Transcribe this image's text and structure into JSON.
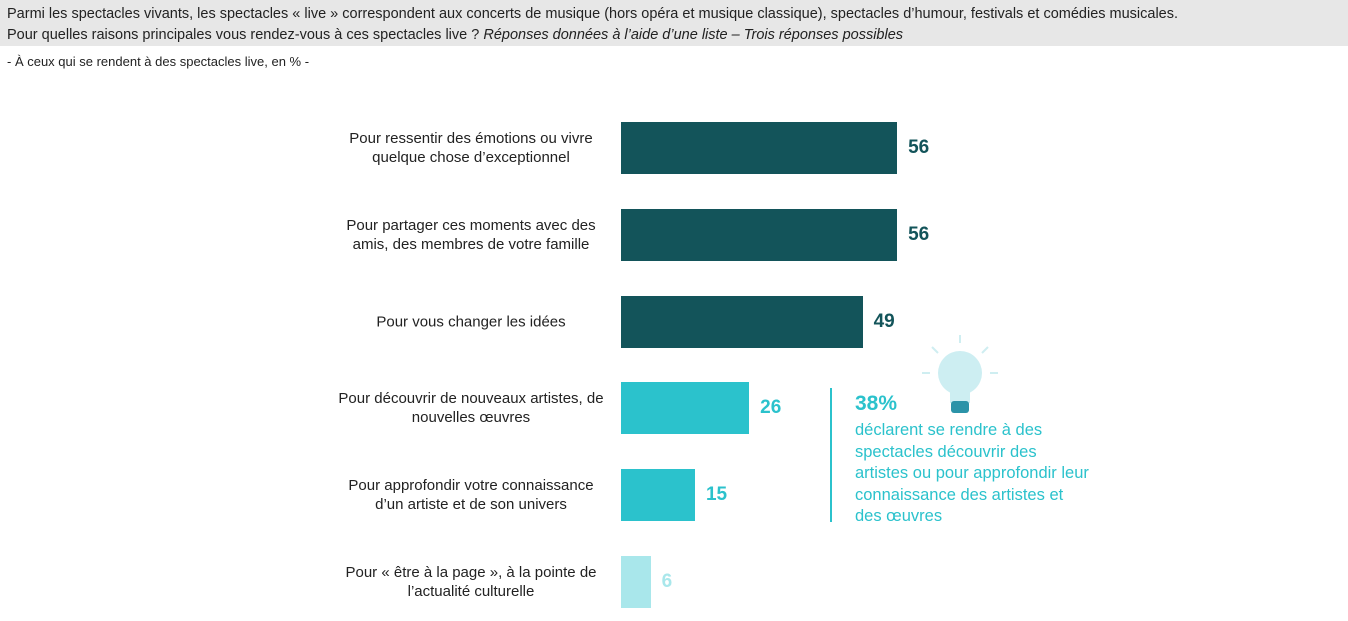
{
  "chart_data": {
    "type": "bar",
    "orientation": "horizontal",
    "header": "Parmi les spectacles vivants, les spectacles « live » correspondent aux concerts de musique (hors opéra et musique classique), spectacles d’humour, festivals et comédies musicales.",
    "question": "Pour quelles raisons principales vous rendez-vous à ces spectacles live ?",
    "question_note": "Réponses données à l’aide d’une liste – Trois réponses possibles",
    "subtitle": "- À ceux qui se rendent à des spectacles live, en % -",
    "categories": [
      "Pour ressentir des émotions ou vivre quelque chose d’exceptionnel",
      "Pour partager ces moments avec des amis, des membres de votre famille",
      "Pour vous changer les idées",
      "Pour découvrir de nouveaux artistes, de nouvelles œuvres",
      "Pour approfondir votre connaissance d’un artiste et de son univers",
      "Pour « être à la page », à la pointe de l’actualité culturelle"
    ],
    "values": [
      56,
      56,
      49,
      26,
      15,
      6
    ],
    "colors": [
      "#13545a",
      "#13545a",
      "#13545a",
      "#2bc2cc",
      "#2bc2cc",
      "#a9e7eb"
    ],
    "annotation": {
      "value": 38,
      "value_label": "38%",
      "text": "déclarent se rendre à des spectacles découvrir des artistes ou pour approfondir leur connaissance des artistes et des œuvres",
      "color": "#2bc2cc"
    }
  }
}
